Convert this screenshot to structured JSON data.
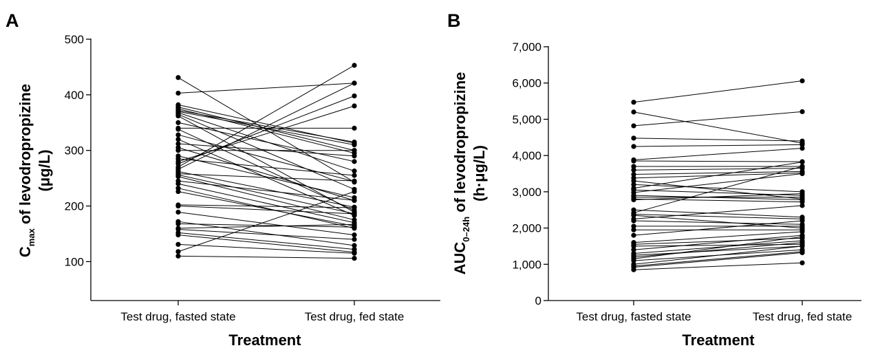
{
  "chart_data": [
    {
      "type": "line",
      "panel_label": "A",
      "title": "",
      "ylabel_main": "C",
      "ylabel_sub": "max",
      "ylabel_rest": " of levodropropizine",
      "ylabel_unit": "(μg/L)",
      "xlabel": "Treatment",
      "categories": [
        "Test drug, fasted state",
        "Test drug, fed state"
      ],
      "ylim": [
        30,
        500
      ],
      "yticks": [
        100,
        200,
        300,
        400,
        500
      ],
      "ytick_labels": [
        "100",
        "200",
        "300",
        "400",
        "500"
      ],
      "grid": false,
      "legend": "none",
      "pairs": [
        [
          431,
          243
        ],
        [
          403,
          421
        ],
        [
          382,
          313
        ],
        [
          378,
          300
        ],
        [
          375,
          295
        ],
        [
          372,
          315
        ],
        [
          370,
          310
        ],
        [
          368,
          263
        ],
        [
          365,
          230
        ],
        [
          362,
          189
        ],
        [
          350,
          280
        ],
        [
          340,
          340
        ],
        [
          338,
          192
        ],
        [
          328,
          244
        ],
        [
          320,
          183
        ],
        [
          312,
          290
        ],
        [
          305,
          210
        ],
        [
          300,
          300
        ],
        [
          290,
          215
        ],
        [
          285,
          255
        ],
        [
          280,
          380
        ],
        [
          276,
          398
        ],
        [
          270,
          453
        ],
        [
          266,
          421
        ],
        [
          262,
          198
        ],
        [
          258,
          245
        ],
        [
          256,
          186
        ],
        [
          253,
          175
        ],
        [
          245,
          210
        ],
        [
          240,
          170
        ],
        [
          232,
          160
        ],
        [
          226,
          164
        ],
        [
          202,
          197
        ],
        [
          200,
          186
        ],
        [
          189,
          148
        ],
        [
          172,
          129
        ],
        [
          168,
          162
        ],
        [
          160,
          167
        ],
        [
          158,
          140
        ],
        [
          152,
          122
        ],
        [
          148,
          117
        ],
        [
          131,
          115
        ],
        [
          118,
          226
        ],
        [
          110,
          106
        ]
      ]
    },
    {
      "type": "line",
      "panel_label": "B",
      "title": "",
      "ylabel_main": "AUC",
      "ylabel_sub": "0–24h",
      "ylabel_rest": " of levodropropizine",
      "ylabel_unit": "(h·μg/L)",
      "xlabel": "Treatment",
      "categories": [
        "Test drug, fasted state",
        "Test drug, fed state"
      ],
      "ylim": [
        0,
        7000
      ],
      "yticks": [
        0,
        1000,
        2000,
        3000,
        4000,
        5000,
        6000,
        7000
      ],
      "ytick_labels": [
        "0",
        "1,000",
        "2,000",
        "3,000",
        "4,000",
        "5,000",
        "6,000",
        "7,000"
      ],
      "grid": false,
      "legend": "none",
      "pairs": [
        [
          5470,
          6060
        ],
        [
          5200,
          4340
        ],
        [
          4820,
          5210
        ],
        [
          4480,
          4400
        ],
        [
          4250,
          4300
        ],
        [
          3880,
          4200
        ],
        [
          3850,
          3830
        ],
        [
          3700,
          3700
        ],
        [
          3600,
          3650
        ],
        [
          3480,
          3560
        ],
        [
          3380,
          3520
        ],
        [
          3300,
          2800
        ],
        [
          3200,
          3000
        ],
        [
          3100,
          3820
        ],
        [
          3050,
          2900
        ],
        [
          2980,
          3500
        ],
        [
          2900,
          2780
        ],
        [
          2850,
          2850
        ],
        [
          2800,
          2720
        ],
        [
          2780,
          2950
        ],
        [
          2500,
          2300
        ],
        [
          2420,
          3700
        ],
        [
          2380,
          2250
        ],
        [
          2350,
          2000
        ],
        [
          2250,
          2620
        ],
        [
          2200,
          2100
        ],
        [
          2050,
          2050
        ],
        [
          1950,
          1950
        ],
        [
          1800,
          2200
        ],
        [
          1600,
          1900
        ],
        [
          1550,
          1720
        ],
        [
          1500,
          1550
        ],
        [
          1400,
          1800
        ],
        [
          1300,
          1650
        ],
        [
          1250,
          1500
        ],
        [
          1200,
          1600
        ],
        [
          1150,
          1760
        ],
        [
          1100,
          1400
        ],
        [
          1000,
          1500
        ],
        [
          950,
          1350
        ],
        [
          920,
          1320
        ],
        [
          850,
          1040
        ]
      ]
    }
  ]
}
